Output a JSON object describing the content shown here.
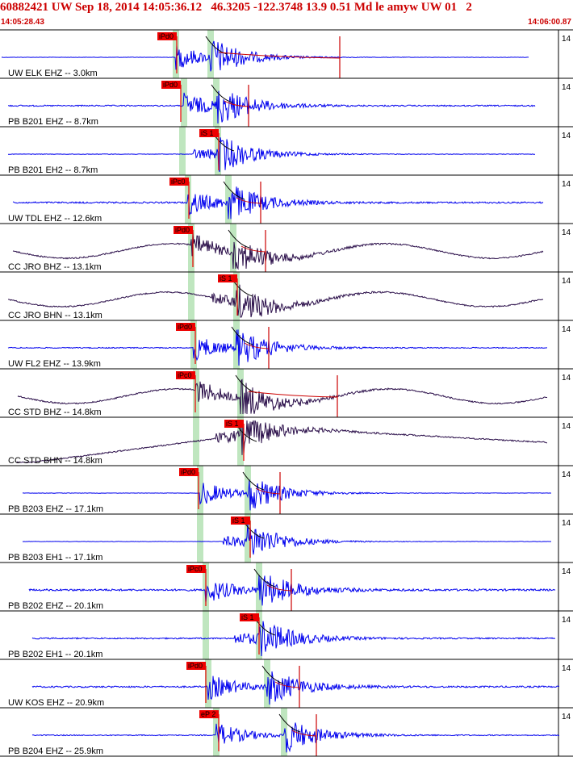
{
  "header": {
    "title": "60882421 UW Sep 18, 2014 14:05:36.12   46.3205 -122.3748 13.9 0.51 Md le amyw UW 01   2",
    "start_time": "14:05:28.43",
    "end_time": "14:06:00.87"
  },
  "colors": {
    "trace_blue": "#0000ee",
    "trace_purple": "#2b0f4a",
    "pick_box": "#ee0000",
    "window_band": "#bfe6bf",
    "divider": "#000000",
    "coda_fit": "#cc0000"
  },
  "chart_data": {
    "type": "seismogram",
    "time_range": [
      "14:05:28.43",
      "14:06:00.87"
    ],
    "traces": [
      {
        "label": "UW ELK EHZ -- 3.0km",
        "gain": "14",
        "color": "blue",
        "pick": "iPd0",
        "pick_phase": "P",
        "noise": 0.05,
        "bg": "flat",
        "coda": true
      },
      {
        "label": "PB B201 EHZ -- 8.7km",
        "gain": "14",
        "color": "blue",
        "pick": "iPd0",
        "pick_phase": "P",
        "noise": 0.2,
        "bg": "flat",
        "coda": true
      },
      {
        "label": "PB B201 EH2 -- 8.7km",
        "gain": "14",
        "color": "blue",
        "pick": "iS 1",
        "pick_phase": "S",
        "noise": 0.08,
        "bg": "flat",
        "coda": false
      },
      {
        "label": "UW TDL EHZ -- 12.6km",
        "gain": "14",
        "color": "blue",
        "pick": "iPc0",
        "pick_phase": "P",
        "noise": 0.25,
        "bg": "flat",
        "coda": true
      },
      {
        "label": "CC JRO BHZ -- 13.1km",
        "gain": "14",
        "color": "purple",
        "pick": "iPd0",
        "pick_phase": "P",
        "noise": 0.2,
        "bg": "wave",
        "coda": true
      },
      {
        "label": "CC JRO BHN -- 13.1km",
        "gain": "14",
        "color": "purple",
        "pick": "iS 1",
        "pick_phase": "S",
        "noise": 0.2,
        "bg": "wave",
        "coda": false
      },
      {
        "label": "UW FL2 EHZ -- 13.9km",
        "gain": "14",
        "color": "blue",
        "pick": "iPd0",
        "pick_phase": "P",
        "noise": 0.15,
        "bg": "flat",
        "coda": true
      },
      {
        "label": "CC STD BHZ -- 14.8km",
        "gain": "14",
        "color": "purple",
        "pick": "iPc0",
        "pick_phase": "P",
        "noise": 0.2,
        "bg": "wave",
        "coda": true
      },
      {
        "label": "CC STD BHN -- 14.8km",
        "gain": "14",
        "color": "purple",
        "pick": "iS 1",
        "pick_phase": "S",
        "noise": 0.2,
        "bg": "drift",
        "coda": false
      },
      {
        "label": "PB B203 EHZ -- 17.1km",
        "gain": "14",
        "color": "blue",
        "pick": "iPd0",
        "pick_phase": "P",
        "noise": 0.05,
        "bg": "flat",
        "coda": true
      },
      {
        "label": "PB B203 EH1 -- 17.1km",
        "gain": "14",
        "color": "blue",
        "pick": "iS 1",
        "pick_phase": "S",
        "noise": 0.05,
        "bg": "flat",
        "coda": false
      },
      {
        "label": "PB B202 EHZ -- 20.1km",
        "gain": "14",
        "color": "blue",
        "pick": "iPc0",
        "pick_phase": "P",
        "noise": 0.3,
        "bg": "flat",
        "coda": true
      },
      {
        "label": "PB B202 EH1 -- 20.1km",
        "gain": "14",
        "color": "blue",
        "pick": "iS 1",
        "pick_phase": "S",
        "noise": 0.2,
        "bg": "flat",
        "coda": false
      },
      {
        "label": "UW KOS EHZ -- 20.9km",
        "gain": "14",
        "color": "blue",
        "pick": "iPd0",
        "pick_phase": "P",
        "noise": 0.25,
        "bg": "flat",
        "coda": true
      },
      {
        "label": "PB B204 EHZ -- 25.9km",
        "gain": "14",
        "color": "blue",
        "pick": "eP 2",
        "pick_phase": "P",
        "noise": 0.15,
        "bg": "flat",
        "coda": true
      }
    ]
  }
}
